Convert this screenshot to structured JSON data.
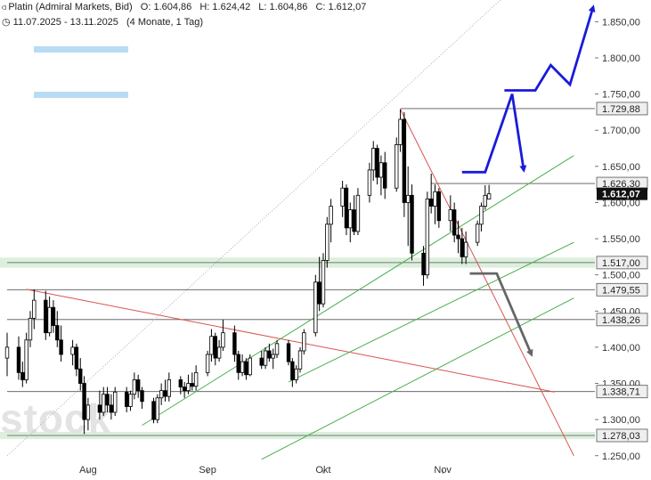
{
  "header": {
    "instrument": "Platin (Admiral Markets, Bid)",
    "open_label": "O:",
    "open": "1.604,86",
    "high_label": "H:",
    "high": "1.624,42",
    "low_label": "L:",
    "low": "1.604,86",
    "close_label": "C:",
    "close": "1.612,07",
    "range": "11.07.2025 - 13.11.2025",
    "period": "(4 Monate, 1 Tag)"
  },
  "watermark": "stock",
  "colors": {
    "up_candle": "#ffffff",
    "down_candle": "#000000",
    "candle_outline": "#000000",
    "support_line": "#555555",
    "support_fill": "#cfe8cf",
    "red_line": "#d9534f",
    "green_line": "#4caf50",
    "dotted_line": "#9a9a9a",
    "blue_arrow": "#1a1adb",
    "gray_arrow": "#666666",
    "legend_bar": "#b8dcf4",
    "label_fill": "#efefef",
    "current_price_fill": "#111111",
    "current_price_text": "#ffffff"
  },
  "chart_data": {
    "type": "candlestick",
    "ylim": [
      1230,
      1880
    ],
    "y_ticks": [
      1250,
      1300,
      1350,
      1400,
      1450,
      1500,
      1550,
      1600,
      1650,
      1700,
      1750,
      1800,
      1850
    ],
    "y_tick_labels": [
      "1.250,00",
      "1.300,00",
      "1.350,00",
      "1.400,00",
      "1.450,00",
      "1.500,00",
      "1.550,00",
      "1.600,00",
      "1.650,00",
      "1.700,00",
      "1.750,00",
      "1.800,00",
      "1.850,00"
    ],
    "x_range": [
      "2025-07-11",
      "2025-11-13"
    ],
    "x_ticks": [
      {
        "date": "2025-08-01",
        "label": "Aug"
      },
      {
        "date": "2025-09-01",
        "label": "Sep"
      },
      {
        "date": "2025-10-01",
        "label": "Okt"
      },
      {
        "date": "2025-11-01",
        "label": "Nov"
      }
    ],
    "candles": [
      {
        "d": "2025-07-11",
        "o": 1385,
        "h": 1420,
        "l": 1360,
        "c": 1400
      },
      {
        "d": "2025-07-14",
        "o": 1400,
        "h": 1415,
        "l": 1355,
        "c": 1365
      },
      {
        "d": "2025-07-15",
        "o": 1365,
        "h": 1380,
        "l": 1345,
        "c": 1355
      },
      {
        "d": "2025-07-16",
        "o": 1355,
        "h": 1420,
        "l": 1350,
        "c": 1410
      },
      {
        "d": "2025-07-17",
        "o": 1410,
        "h": 1450,
        "l": 1400,
        "c": 1440
      },
      {
        "d": "2025-07-18",
        "o": 1440,
        "h": 1480,
        "l": 1425,
        "c": 1465
      },
      {
        "d": "2025-07-21",
        "o": 1465,
        "h": 1478,
        "l": 1410,
        "c": 1420
      },
      {
        "d": "2025-07-22",
        "o": 1420,
        "h": 1470,
        "l": 1415,
        "c": 1455
      },
      {
        "d": "2025-07-23",
        "o": 1455,
        "h": 1465,
        "l": 1420,
        "c": 1430
      },
      {
        "d": "2025-07-24",
        "o": 1430,
        "h": 1450,
        "l": 1400,
        "c": 1410
      },
      {
        "d": "2025-07-25",
        "o": 1410,
        "h": 1430,
        "l": 1380,
        "c": 1390
      },
      {
        "d": "2025-07-28",
        "o": 1390,
        "h": 1410,
        "l": 1375,
        "c": 1400
      },
      {
        "d": "2025-07-29",
        "o": 1400,
        "h": 1405,
        "l": 1360,
        "c": 1370
      },
      {
        "d": "2025-07-30",
        "o": 1370,
        "h": 1385,
        "l": 1340,
        "c": 1350
      },
      {
        "d": "2025-07-31",
        "o": 1350,
        "h": 1360,
        "l": 1280,
        "c": 1300
      },
      {
        "d": "2025-08-01",
        "o": 1300,
        "h": 1330,
        "l": 1285,
        "c": 1320
      },
      {
        "d": "2025-08-04",
        "o": 1320,
        "h": 1340,
        "l": 1300,
        "c": 1310
      },
      {
        "d": "2025-08-05",
        "o": 1310,
        "h": 1345,
        "l": 1305,
        "c": 1335
      },
      {
        "d": "2025-08-06",
        "o": 1335,
        "h": 1345,
        "l": 1310,
        "c": 1320
      },
      {
        "d": "2025-08-07",
        "o": 1320,
        "h": 1335,
        "l": 1300,
        "c": 1310
      },
      {
        "d": "2025-08-08",
        "o": 1310,
        "h": 1345,
        "l": 1305,
        "c": 1338
      },
      {
        "d": "2025-08-11",
        "o": 1338,
        "h": 1345,
        "l": 1310,
        "c": 1318
      },
      {
        "d": "2025-08-12",
        "o": 1318,
        "h": 1340,
        "l": 1312,
        "c": 1335
      },
      {
        "d": "2025-08-13",
        "o": 1335,
        "h": 1365,
        "l": 1328,
        "c": 1355
      },
      {
        "d": "2025-08-14",
        "o": 1355,
        "h": 1362,
        "l": 1330,
        "c": 1340
      },
      {
        "d": "2025-08-15",
        "o": 1340,
        "h": 1345,
        "l": 1315,
        "c": 1325
      },
      {
        "d": "2025-08-18",
        "o": 1325,
        "h": 1330,
        "l": 1295,
        "c": 1300
      },
      {
        "d": "2025-08-19",
        "o": 1300,
        "h": 1335,
        "l": 1295,
        "c": 1330
      },
      {
        "d": "2025-08-20",
        "o": 1330,
        "h": 1350,
        "l": 1320,
        "c": 1340
      },
      {
        "d": "2025-08-21",
        "o": 1340,
        "h": 1355,
        "l": 1325,
        "c": 1332
      },
      {
        "d": "2025-08-22",
        "o": 1332,
        "h": 1365,
        "l": 1325,
        "c": 1355
      },
      {
        "d": "2025-08-25",
        "o": 1355,
        "h": 1360,
        "l": 1335,
        "c": 1345
      },
      {
        "d": "2025-08-26",
        "o": 1345,
        "h": 1352,
        "l": 1330,
        "c": 1340
      },
      {
        "d": "2025-08-27",
        "o": 1340,
        "h": 1362,
        "l": 1335,
        "c": 1350
      },
      {
        "d": "2025-08-28",
        "o": 1350,
        "h": 1365,
        "l": 1340,
        "c": 1346
      },
      {
        "d": "2025-08-29",
        "o": 1346,
        "h": 1375,
        "l": 1340,
        "c": 1365
      },
      {
        "d": "2025-09-01",
        "o": 1365,
        "h": 1395,
        "l": 1360,
        "c": 1390
      },
      {
        "d": "2025-09-02",
        "o": 1390,
        "h": 1425,
        "l": 1380,
        "c": 1415
      },
      {
        "d": "2025-09-03",
        "o": 1415,
        "h": 1420,
        "l": 1375,
        "c": 1385
      },
      {
        "d": "2025-09-04",
        "o": 1385,
        "h": 1410,
        "l": 1380,
        "c": 1400
      },
      {
        "d": "2025-09-05",
        "o": 1400,
        "h": 1438,
        "l": 1395,
        "c": 1420
      },
      {
        "d": "2025-09-08",
        "o": 1420,
        "h": 1430,
        "l": 1380,
        "c": 1390
      },
      {
        "d": "2025-09-09",
        "o": 1390,
        "h": 1395,
        "l": 1355,
        "c": 1365
      },
      {
        "d": "2025-09-10",
        "o": 1365,
        "h": 1390,
        "l": 1360,
        "c": 1380
      },
      {
        "d": "2025-09-11",
        "o": 1380,
        "h": 1385,
        "l": 1355,
        "c": 1362
      },
      {
        "d": "2025-09-12",
        "o": 1362,
        "h": 1390,
        "l": 1360,
        "c": 1385
      },
      {
        "d": "2025-09-15",
        "o": 1385,
        "h": 1395,
        "l": 1370,
        "c": 1375
      },
      {
        "d": "2025-09-16",
        "o": 1375,
        "h": 1400,
        "l": 1370,
        "c": 1395
      },
      {
        "d": "2025-09-17",
        "o": 1395,
        "h": 1405,
        "l": 1380,
        "c": 1385
      },
      {
        "d": "2025-09-18",
        "o": 1385,
        "h": 1398,
        "l": 1370,
        "c": 1390
      },
      {
        "d": "2025-09-19",
        "o": 1390,
        "h": 1410,
        "l": 1385,
        "c": 1405
      },
      {
        "d": "2025-09-22",
        "o": 1405,
        "h": 1410,
        "l": 1375,
        "c": 1380
      },
      {
        "d": "2025-09-23",
        "o": 1380,
        "h": 1385,
        "l": 1345,
        "c": 1355
      },
      {
        "d": "2025-09-24",
        "o": 1355,
        "h": 1375,
        "l": 1350,
        "c": 1370
      },
      {
        "d": "2025-09-25",
        "o": 1370,
        "h": 1400,
        "l": 1365,
        "c": 1395
      },
      {
        "d": "2025-09-26",
        "o": 1395,
        "h": 1425,
        "l": 1390,
        "c": 1420
      },
      {
        "d": "2025-09-29",
        "o": 1420,
        "h": 1500,
        "l": 1415,
        "c": 1490
      },
      {
        "d": "2025-09-30",
        "o": 1490,
        "h": 1525,
        "l": 1450,
        "c": 1460
      },
      {
        "d": "2025-10-01",
        "o": 1460,
        "h": 1530,
        "l": 1455,
        "c": 1520
      },
      {
        "d": "2025-10-02",
        "o": 1520,
        "h": 1580,
        "l": 1510,
        "c": 1570
      },
      {
        "d": "2025-10-03",
        "o": 1570,
        "h": 1605,
        "l": 1545,
        "c": 1595
      },
      {
        "d": "2025-10-06",
        "o": 1595,
        "h": 1630,
        "l": 1580,
        "c": 1620
      },
      {
        "d": "2025-10-07",
        "o": 1620,
        "h": 1625,
        "l": 1555,
        "c": 1565
      },
      {
        "d": "2025-10-08",
        "o": 1565,
        "h": 1600,
        "l": 1545,
        "c": 1590
      },
      {
        "d": "2025-10-09",
        "o": 1590,
        "h": 1610,
        "l": 1555,
        "c": 1560
      },
      {
        "d": "2025-10-10",
        "o": 1560,
        "h": 1620,
        "l": 1555,
        "c": 1610
      },
      {
        "d": "2025-10-13",
        "o": 1610,
        "h": 1655,
        "l": 1600,
        "c": 1645
      },
      {
        "d": "2025-10-14",
        "o": 1645,
        "h": 1685,
        "l": 1630,
        "c": 1675
      },
      {
        "d": "2025-10-15",
        "o": 1675,
        "h": 1680,
        "l": 1625,
        "c": 1635
      },
      {
        "d": "2025-10-16",
        "o": 1635,
        "h": 1665,
        "l": 1610,
        "c": 1655
      },
      {
        "d": "2025-10-17",
        "o": 1655,
        "h": 1670,
        "l": 1605,
        "c": 1620
      },
      {
        "d": "2025-10-20",
        "o": 1620,
        "h": 1690,
        "l": 1615,
        "c": 1680
      },
      {
        "d": "2025-10-21",
        "o": 1680,
        "h": 1729,
        "l": 1670,
        "c": 1715
      },
      {
        "d": "2025-10-22",
        "o": 1715,
        "h": 1725,
        "l": 1580,
        "c": 1600
      },
      {
        "d": "2025-10-23",
        "o": 1600,
        "h": 1650,
        "l": 1540,
        "c": 1610
      },
      {
        "d": "2025-10-24",
        "o": 1610,
        "h": 1625,
        "l": 1520,
        "c": 1530
      },
      {
        "d": "2025-10-27",
        "o": 1530,
        "h": 1540,
        "l": 1485,
        "c": 1500
      },
      {
        "d": "2025-10-28",
        "o": 1500,
        "h": 1615,
        "l": 1495,
        "c": 1605
      },
      {
        "d": "2025-10-29",
        "o": 1605,
        "h": 1640,
        "l": 1585,
        "c": 1595
      },
      {
        "d": "2025-10-30",
        "o": 1595,
        "h": 1625,
        "l": 1570,
        "c": 1615
      },
      {
        "d": "2025-10-31",
        "o": 1615,
        "h": 1620,
        "l": 1565,
        "c": 1575
      },
      {
        "d": "2025-11-03",
        "o": 1575,
        "h": 1610,
        "l": 1560,
        "c": 1590
      },
      {
        "d": "2025-11-04",
        "o": 1590,
        "h": 1600,
        "l": 1545,
        "c": 1555
      },
      {
        "d": "2025-11-05",
        "o": 1555,
        "h": 1575,
        "l": 1530,
        "c": 1550
      },
      {
        "d": "2025-11-06",
        "o": 1550,
        "h": 1565,
        "l": 1515,
        "c": 1525
      },
      {
        "d": "2025-11-07",
        "o": 1525,
        "h": 1560,
        "l": 1515,
        "c": 1545
      },
      {
        "d": "2025-11-10",
        "o": 1545,
        "h": 1575,
        "l": 1540,
        "c": 1570
      },
      {
        "d": "2025-11-11",
        "o": 1570,
        "h": 1600,
        "l": 1560,
        "c": 1595
      },
      {
        "d": "2025-11-12",
        "o": 1595,
        "h": 1624,
        "l": 1590,
        "c": 1610
      },
      {
        "d": "2025-11-13",
        "o": 1604.86,
        "h": 1624.42,
        "l": 1604.86,
        "c": 1612.07
      }
    ],
    "horizontal_levels": [
      {
        "value": 1729.88,
        "label": "1.729,88",
        "from": "2025-10-21"
      },
      {
        "value": 1626.3,
        "label": "1.626,30",
        "from": "2025-10-29"
      },
      {
        "value": 1517.0,
        "label": "1.517,00",
        "from": "2025-07-11",
        "zone": [
          1510,
          1524
        ]
      },
      {
        "value": 1479.55,
        "label": "1.479,55",
        "from": "2025-07-11"
      },
      {
        "value": 1438.26,
        "label": "1.438,26",
        "from": "2025-07-11"
      },
      {
        "value": 1338.71,
        "label": "1.338,71",
        "from": "2025-07-11"
      },
      {
        "value": 1278.03,
        "label": "1.278,03",
        "from": "2025-07-11",
        "zone": [
          1273,
          1283
        ]
      }
    ],
    "current_price": {
      "value": 1612.07,
      "label": "1.612,07"
    },
    "trendlines": [
      {
        "color": "red",
        "from": {
          "d": "2025-07-16",
          "v": 1480
        },
        "to": {
          "d": "2025-11-30",
          "v": 1338
        }
      },
      {
        "color": "red",
        "from": {
          "d": "2025-10-21",
          "v": 1729
        },
        "to": {
          "d": "2025-12-05",
          "v": 1250
        }
      },
      {
        "color": "green",
        "from": {
          "d": "2025-08-15",
          "v": 1292
        },
        "to": {
          "d": "2025-12-05",
          "v": 1665
        }
      },
      {
        "color": "green",
        "from": {
          "d": "2025-09-22",
          "v": 1352
        },
        "to": {
          "d": "2025-12-05",
          "v": 1545
        }
      },
      {
        "color": "green",
        "from": {
          "d": "2025-09-15",
          "v": 1245
        },
        "to": {
          "d": "2025-12-05",
          "v": 1468
        }
      },
      {
        "color": "dotted",
        "from": {
          "d": "2025-07-11",
          "v": 1250
        },
        "to": {
          "d": "2025-11-20",
          "v": 1900
        }
      }
    ],
    "projection_arrows": [
      {
        "color": "blue",
        "points": [
          {
            "d": "2025-11-06",
            "v": 1642
          },
          {
            "d": "2025-11-12",
            "v": 1642
          },
          {
            "d": "2025-11-19",
            "v": 1750
          },
          {
            "d": "2025-11-22",
            "v": 1645
          }
        ]
      },
      {
        "color": "blue",
        "points": [
          {
            "d": "2025-11-17",
            "v": 1755
          },
          {
            "d": "2025-11-25",
            "v": 1755
          },
          {
            "d": "2025-11-29",
            "v": 1790
          },
          {
            "d": "2025-12-04",
            "v": 1763
          },
          {
            "d": "2025-12-10",
            "v": 1870
          }
        ]
      },
      {
        "color": "gray",
        "points": [
          {
            "d": "2025-11-08",
            "v": 1502
          },
          {
            "d": "2025-11-15",
            "v": 1502
          },
          {
            "d": "2025-11-24",
            "v": 1390
          }
        ]
      }
    ]
  }
}
